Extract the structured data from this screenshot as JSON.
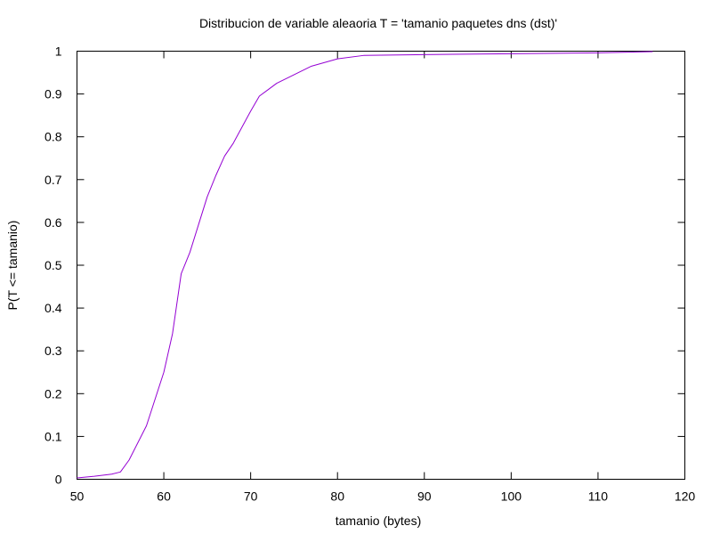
{
  "chart_data": {
    "type": "line",
    "title": "Distribucion de variable aleaoria T = 'tamanio paquetes dns (dst)'",
    "xlabel": "tamanio (bytes)",
    "ylabel": "P(T <= tamanio)",
    "xlim": [
      50,
      120
    ],
    "ylim": [
      0,
      1
    ],
    "x_ticks": [
      50,
      60,
      70,
      80,
      90,
      100,
      110,
      120
    ],
    "y_ticks": [
      0,
      0.1,
      0.2,
      0.3,
      0.4,
      0.5,
      0.6,
      0.7,
      0.8,
      0.9,
      1
    ],
    "x_tick_labels": [
      "50",
      "60",
      "70",
      "80",
      "90",
      "100",
      "110",
      "120"
    ],
    "y_tick_labels": [
      "0",
      "0.1",
      "0.2",
      "0.3",
      "0.4",
      "0.5",
      "0.6",
      "0.7",
      "0.8",
      "0.9",
      "1"
    ],
    "grid": false,
    "legend": "none",
    "series": [
      {
        "color": "#9400d3",
        "x": [
          50,
          52,
          54,
          55,
          56,
          58,
          60,
          61,
          62,
          63,
          64,
          65,
          66,
          67,
          68,
          70,
          71,
          72,
          73,
          75,
          77,
          80,
          83,
          86,
          90,
          100,
          110,
          116.3
        ],
        "y": [
          0.003,
          0.007,
          0.012,
          0.017,
          0.045,
          0.125,
          0.25,
          0.34,
          0.48,
          0.53,
          0.595,
          0.66,
          0.71,
          0.755,
          0.785,
          0.86,
          0.895,
          0.91,
          0.925,
          0.945,
          0.965,
          0.982,
          0.99,
          0.991,
          0.992,
          0.994,
          0.996,
          0.999
        ]
      }
    ]
  }
}
